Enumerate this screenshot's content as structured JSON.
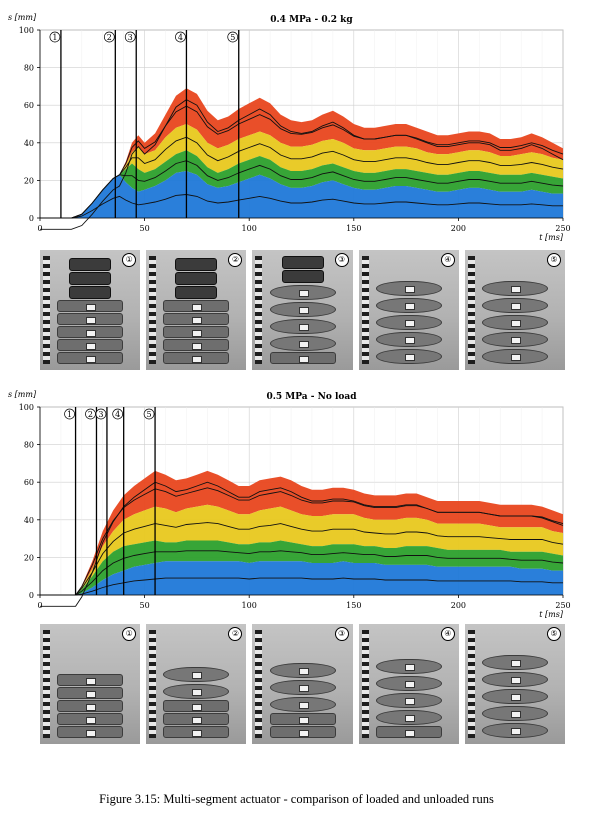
{
  "figures": [
    {
      "title": "0.4 MPa - 0.2 kg",
      "ylabel": "s [mm]",
      "xlabel": "t [ms]",
      "markers": [
        {
          "label": "①",
          "t": 10
        },
        {
          "label": "②",
          "t": 36
        },
        {
          "label": "③",
          "t": 46
        },
        {
          "label": "④",
          "t": 70
        },
        {
          "label": "⑤",
          "t": 95
        }
      ],
      "photos": [
        {
          "label": "①",
          "segments": 5,
          "open": 0,
          "weights": 3
        },
        {
          "label": "②",
          "segments": 5,
          "open": 0,
          "weights": 3
        },
        {
          "label": "③",
          "segments": 5,
          "open": 4,
          "weights": 2
        },
        {
          "label": "④",
          "segments": 5,
          "open": 5,
          "weights": 0
        },
        {
          "label": "⑤",
          "segments": 5,
          "open": 5,
          "weights": 0
        }
      ]
    },
    {
      "title": "0.5 MPa - No load",
      "ylabel": "s [mm]",
      "xlabel": "t [ms]",
      "markers": [
        {
          "label": "①",
          "t": 17
        },
        {
          "label": "②",
          "t": 27
        },
        {
          "label": "③",
          "t": 32
        },
        {
          "label": "④",
          "t": 40
        },
        {
          "label": "⑤",
          "t": 55
        }
      ],
      "photos": [
        {
          "label": "①",
          "segments": 5,
          "open": 0,
          "weights": 0
        },
        {
          "label": "②",
          "segments": 5,
          "open": 2,
          "weights": 0
        },
        {
          "label": "③",
          "segments": 5,
          "open": 3,
          "weights": 0
        },
        {
          "label": "④",
          "segments": 5,
          "open": 4,
          "weights": 0
        },
        {
          "label": "⑤",
          "segments": 5,
          "open": 5,
          "weights": 0
        }
      ]
    }
  ],
  "chart_data": [
    {
      "type": "area",
      "title": "0.4 MPa - 0.2 kg",
      "xlabel": "t [ms]",
      "ylabel": "s [mm]",
      "xlim": [
        0,
        250
      ],
      "ylim": [
        0,
        100
      ],
      "xticks": [
        0,
        50,
        100,
        150,
        200,
        250
      ],
      "yticks": [
        0,
        20,
        40,
        60,
        80,
        100
      ],
      "grid": true,
      "colors": [
        "#1f78d8",
        "#2ca02c",
        "#e8c81e",
        "#e8461e"
      ],
      "x": [
        0,
        10,
        15,
        20,
        25,
        30,
        35,
        38,
        41,
        44,
        47,
        50,
        55,
        60,
        65,
        70,
        75,
        80,
        85,
        90,
        95,
        100,
        105,
        110,
        115,
        120,
        125,
        130,
        135,
        140,
        145,
        150,
        155,
        160,
        165,
        170,
        175,
        180,
        185,
        190,
        195,
        200,
        205,
        210,
        215,
        220,
        225,
        230,
        235,
        240,
        245,
        250
      ],
      "series": [
        {
          "values": [
            0,
            0,
            0,
            2,
            8,
            15,
            21,
            23,
            19,
            16,
            14,
            15,
            17,
            20,
            24,
            25,
            23,
            18,
            16,
            17,
            19,
            21,
            23,
            21,
            18,
            16,
            16,
            17,
            19,
            20,
            18,
            16,
            15,
            15,
            16,
            17,
            17,
            16,
            15,
            14,
            14,
            15,
            16,
            16,
            15,
            14,
            14,
            14,
            15,
            14,
            13,
            13
          ]
        },
        {
          "values": [
            0,
            0,
            0,
            2,
            8,
            15,
            21,
            23,
            26,
            29,
            26,
            24,
            26,
            30,
            34,
            36,
            33,
            27,
            24,
            26,
            29,
            31,
            33,
            31,
            27,
            25,
            25,
            26,
            28,
            29,
            27,
            25,
            24,
            24,
            25,
            26,
            26,
            25,
            24,
            23,
            23,
            24,
            25,
            25,
            24,
            23,
            23,
            23,
            24,
            23,
            22,
            21
          ]
        },
        {
          "values": [
            0,
            0,
            0,
            2,
            8,
            15,
            21,
            23,
            28,
            35,
            38,
            34,
            36,
            43,
            48,
            50,
            47,
            40,
            37,
            39,
            42,
            44,
            46,
            44,
            40,
            38,
            38,
            39,
            41,
            42,
            40,
            37,
            36,
            36,
            37,
            38,
            38,
            37,
            35,
            34,
            34,
            35,
            36,
            36,
            35,
            33,
            33,
            34,
            35,
            34,
            32,
            31
          ]
        },
        {
          "values": [
            0,
            0,
            0,
            2,
            8,
            15,
            21,
            23,
            30,
            40,
            44,
            40,
            45,
            55,
            65,
            69,
            66,
            57,
            52,
            54,
            58,
            61,
            64,
            61,
            55,
            52,
            51,
            52,
            55,
            57,
            54,
            50,
            48,
            48,
            49,
            50,
            50,
            48,
            46,
            44,
            44,
            45,
            46,
            46,
            45,
            42,
            42,
            43,
            45,
            43,
            40,
            37
          ]
        }
      ]
    },
    {
      "type": "area",
      "title": "0.5 MPa - No load",
      "xlabel": "t [ms]",
      "ylabel": "s [mm]",
      "xlim": [
        0,
        250
      ],
      "ylim": [
        0,
        100
      ],
      "xticks": [
        0,
        50,
        100,
        150,
        200,
        250
      ],
      "yticks": [
        0,
        20,
        40,
        60,
        80,
        100
      ],
      "grid": true,
      "colors": [
        "#1f78d8",
        "#2ca02c",
        "#e8c81e",
        "#e8461e"
      ],
      "x": [
        0,
        17,
        20,
        25,
        30,
        35,
        40,
        45,
        50,
        55,
        60,
        65,
        70,
        75,
        80,
        85,
        90,
        95,
        100,
        105,
        110,
        115,
        120,
        125,
        130,
        135,
        140,
        145,
        150,
        155,
        160,
        165,
        170,
        175,
        180,
        185,
        190,
        195,
        200,
        205,
        210,
        215,
        220,
        225,
        230,
        235,
        240,
        245,
        250
      ],
      "series": [
        {
          "values": [
            0,
            0,
            1,
            4,
            8,
            11,
            13,
            15,
            16,
            17,
            18,
            18,
            18,
            18,
            18,
            18,
            18,
            18,
            17,
            18,
            18,
            18,
            18,
            18,
            17,
            17,
            17,
            18,
            17,
            17,
            17,
            16,
            16,
            16,
            16,
            16,
            15,
            15,
            15,
            15,
            15,
            15,
            15,
            15,
            14,
            14,
            14,
            13,
            13
          ]
        },
        {
          "values": [
            0,
            0,
            3,
            10,
            18,
            23,
            26,
            27,
            28,
            29,
            28,
            28,
            29,
            29,
            29,
            29,
            28,
            27,
            27,
            28,
            28,
            29,
            28,
            27,
            26,
            26,
            27,
            27,
            27,
            26,
            26,
            25,
            25,
            26,
            26,
            26,
            25,
            24,
            24,
            24,
            24,
            24,
            24,
            23,
            23,
            23,
            23,
            22,
            21
          ]
        },
        {
          "values": [
            0,
            0,
            4,
            14,
            26,
            34,
            40,
            43,
            45,
            47,
            46,
            44,
            46,
            47,
            48,
            47,
            45,
            43,
            43,
            45,
            46,
            47,
            45,
            43,
            42,
            42,
            43,
            43,
            43,
            41,
            40,
            40,
            40,
            41,
            41,
            40,
            38,
            38,
            38,
            38,
            38,
            37,
            36,
            36,
            36,
            36,
            36,
            34,
            33
          ]
        },
        {
          "values": [
            0,
            0,
            5,
            18,
            34,
            45,
            53,
            58,
            62,
            66,
            64,
            61,
            62,
            64,
            66,
            64,
            61,
            58,
            58,
            61,
            62,
            63,
            61,
            58,
            56,
            56,
            57,
            57,
            56,
            54,
            53,
            53,
            53,
            54,
            54,
            52,
            50,
            50,
            50,
            50,
            50,
            49,
            48,
            48,
            48,
            48,
            47,
            45,
            43
          ]
        }
      ]
    }
  ],
  "caption": "Figure 3.15: Multi-segment actuator - comparison of loaded and unloaded runs"
}
